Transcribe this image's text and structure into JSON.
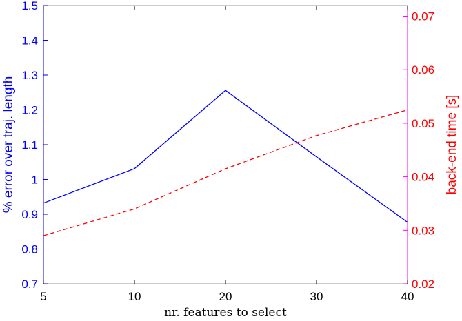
{
  "chart_data": {
    "type": "line",
    "categories": [
      "5",
      "10",
      "20",
      "30",
      "40"
    ],
    "xlabel": "nr. features to select",
    "y_left": {
      "label": "% error over traj. length",
      "range": [
        0.7,
        1.5
      ],
      "ticks": [
        "0.7",
        "0.8",
        "0.9",
        "1",
        "1.1",
        "1.2",
        "1.3",
        "1.4",
        "1.5"
      ],
      "color": "#0000ff"
    },
    "y_right": {
      "label": "back-end time [s]",
      "range": [
        0.02,
        0.072
      ],
      "ticks": [
        "0.02",
        "0.03",
        "0.04",
        "0.05",
        "0.06",
        "0.07"
      ],
      "color": "#ff0000"
    },
    "series": [
      {
        "axis": "left",
        "values": [
          0.932,
          1.031,
          1.256,
          1.065,
          0.877
        ],
        "color": "#0000ff",
        "style": "solid"
      },
      {
        "axis": "right",
        "values": [
          0.029,
          0.034,
          0.0415,
          0.0477,
          0.0525
        ],
        "color": "#ff0000",
        "style": "dashed"
      }
    ],
    "grid": false
  }
}
